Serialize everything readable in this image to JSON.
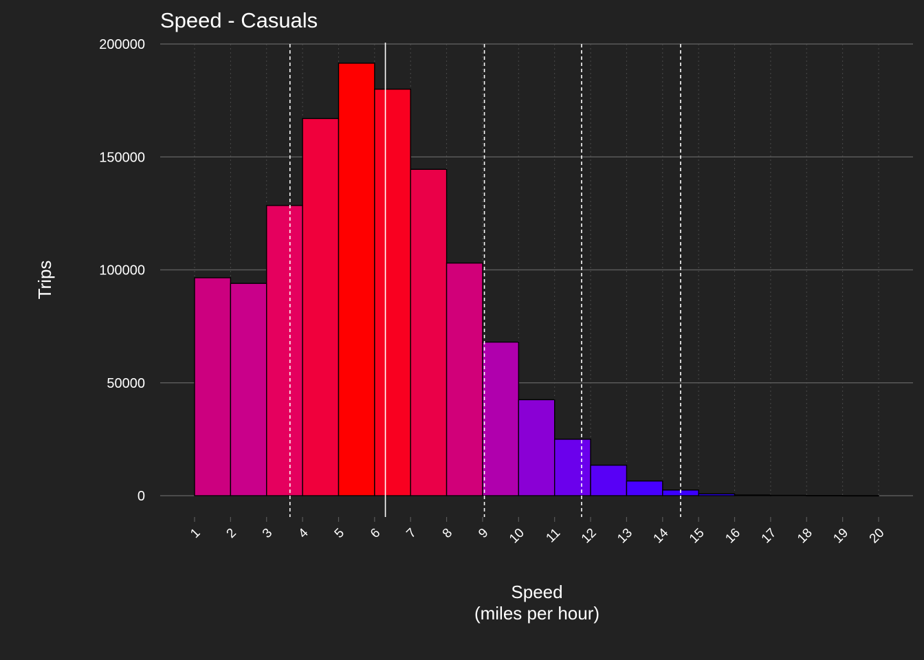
{
  "chart_data": {
    "type": "bar",
    "title": "Speed - Casuals",
    "xlabel": "Speed",
    "xlabel_sub": "(miles per hour)",
    "ylabel": "Trips",
    "categories": [
      1,
      2,
      3,
      4,
      5,
      6,
      7,
      8,
      9,
      10,
      11,
      12,
      13,
      14,
      15,
      16,
      17,
      18,
      19
    ],
    "bin_edges": [
      1,
      2,
      3,
      4,
      5,
      6,
      7,
      8,
      9,
      10,
      11,
      12,
      13,
      14,
      15,
      16,
      17,
      18,
      19,
      20
    ],
    "values": [
      96500,
      94000,
      128500,
      167000,
      191500,
      180000,
      144500,
      103000,
      68000,
      42500,
      25000,
      13500,
      6500,
      2500,
      800,
      300,
      150,
      80,
      40
    ],
    "bar_colors": [
      "#cc007f",
      "#c9008a",
      "#e5005e",
      "#f0003c",
      "#ff0000",
      "#f90020",
      "#ea0048",
      "#d10079",
      "#b000ad",
      "#8a00d5",
      "#6b00ec",
      "#5800f6",
      "#4800ff",
      "#3c00ff",
      "#2c00ff",
      "#2500ff",
      "#2100ff",
      "#1f00ff",
      "#1d00ff"
    ],
    "xticks": [
      1,
      2,
      3,
      4,
      5,
      6,
      7,
      8,
      9,
      10,
      11,
      12,
      13,
      14,
      15,
      16,
      17,
      18,
      19,
      20
    ],
    "yticks": [
      0,
      50000,
      100000,
      150000,
      200000
    ],
    "ylim": [
      0,
      200000
    ],
    "xlim": [
      1,
      20
    ],
    "mean_line": 6.3,
    "dashed_lines": [
      3.65,
      9.05,
      11.75,
      14.5
    ],
    "grid": true,
    "legend": "none",
    "colors": {
      "background": "#222222",
      "grid_major": "#5a5a5a",
      "grid_minor": "#4a4a4a",
      "bar_outline": "#000000",
      "text": "#ffffff",
      "reference_lines": "#ffffff"
    }
  }
}
